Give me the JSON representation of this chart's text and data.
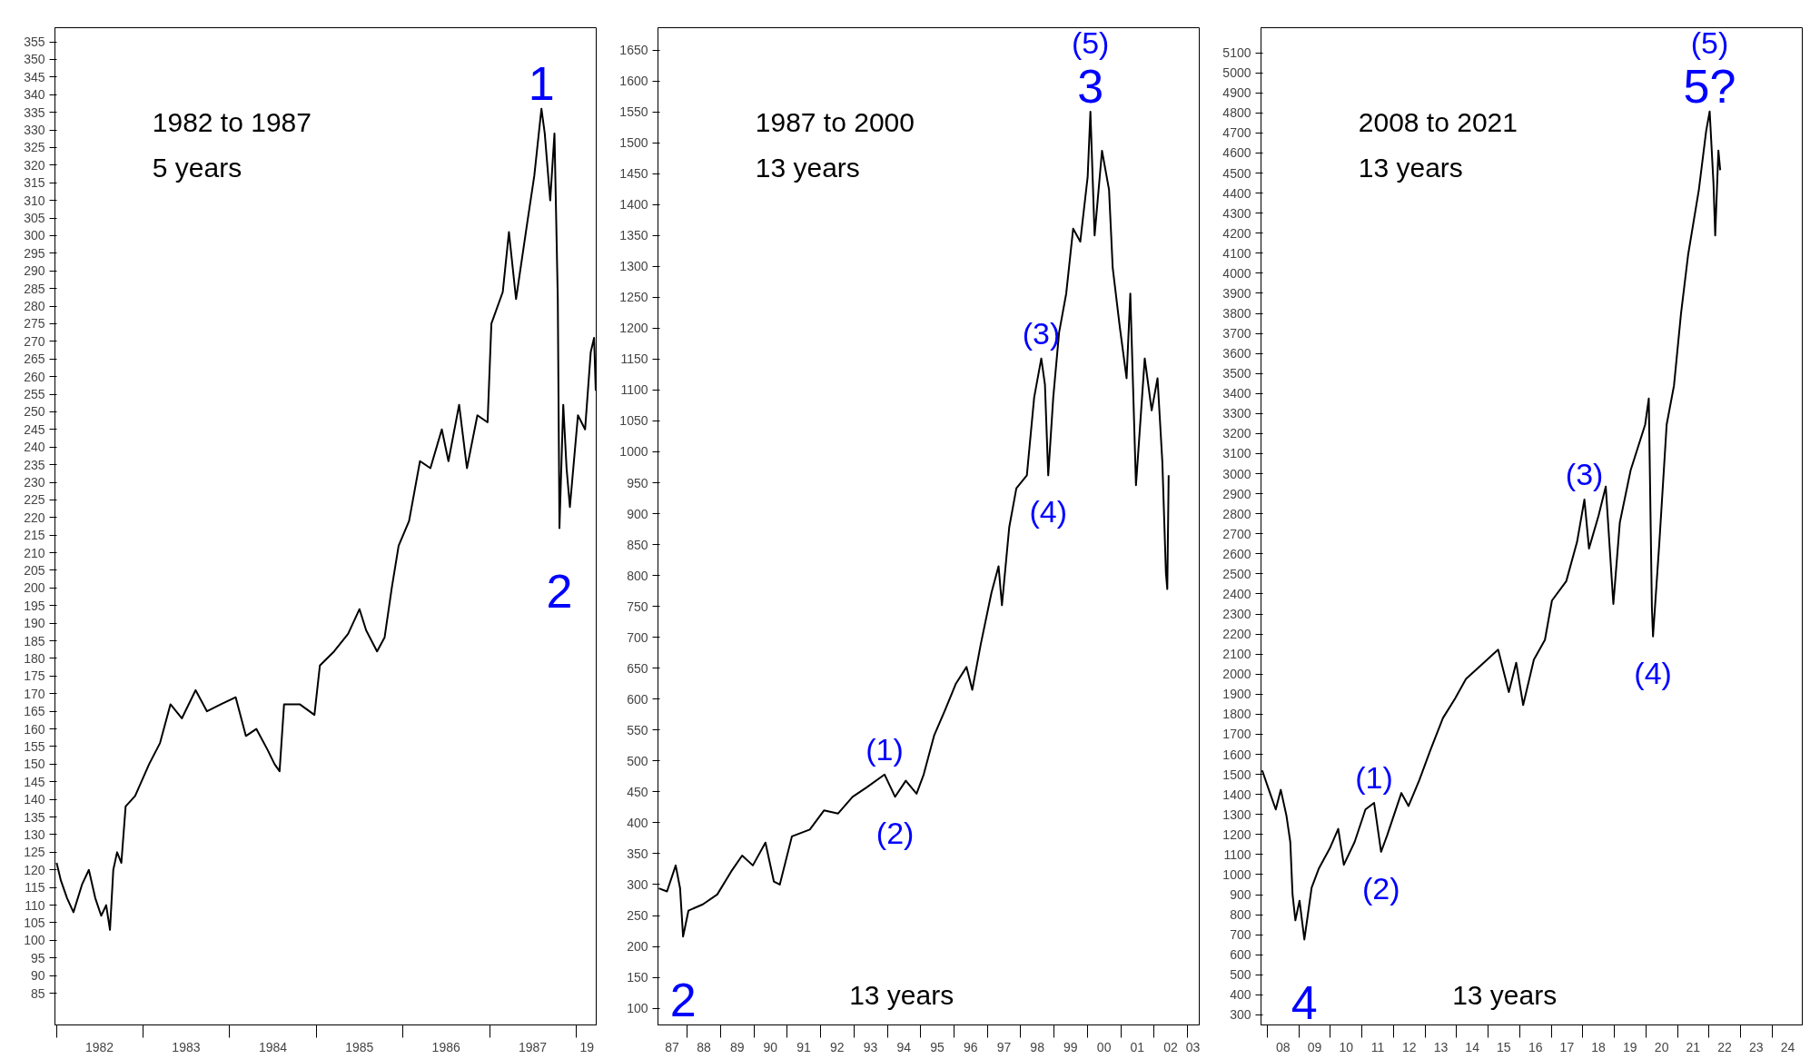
{
  "chart_data": [
    {
      "type": "line",
      "title": "1982 to 1987",
      "subtitle": "5 years",
      "xlim": [
        "1981-12-25",
        "1988-03-25"
      ],
      "ylim": [
        76,
        359
      ],
      "xticks": [
        {
          "value": "1982-07-01",
          "label": "1982"
        },
        {
          "value": "1983-07-01",
          "label": "1983"
        },
        {
          "value": "1984-07-01",
          "label": "1984"
        },
        {
          "value": "1985-07-01",
          "label": "1985"
        },
        {
          "value": "1986-07-01",
          "label": "1986"
        },
        {
          "value": "1987-07-01",
          "label": "1987"
        },
        {
          "value": "1988-02-15",
          "label": "19"
        }
      ],
      "yticks": [
        85,
        90,
        95,
        100,
        105,
        110,
        115,
        120,
        125,
        130,
        135,
        140,
        145,
        150,
        155,
        160,
        165,
        170,
        175,
        180,
        185,
        190,
        195,
        200,
        205,
        210,
        215,
        220,
        225,
        230,
        235,
        240,
        245,
        250,
        255,
        260,
        265,
        270,
        275,
        280,
        285,
        290,
        295,
        300,
        305,
        310,
        315,
        320,
        325,
        330,
        335,
        340,
        345,
        350,
        355
      ],
      "series": [
        {
          "color": "#000000",
          "x": [
            "1982-01-01",
            "1982-01-19",
            "1982-02-14",
            "1982-03-13",
            "1982-04-19",
            "1982-05-17",
            "1982-06-13",
            "1982-07-08",
            "1982-07-29",
            "1982-08-14",
            "1982-08-28",
            "1982-09-13",
            "1982-10-01",
            "1982-10-19",
            "1982-11-28",
            "1983-01-26",
            "1983-03-13",
            "1983-04-26",
            "1983-06-13",
            "1983-08-10",
            "1983-09-27",
            "1983-11-25",
            "1984-01-26",
            "1984-03-09",
            "1984-04-22",
            "1984-06-09",
            "1984-07-08",
            "1984-07-29",
            "1984-08-17",
            "1984-10-22",
            "1984-12-23",
            "1985-01-15",
            "1985-03-16",
            "1985-05-14",
            "1985-07-01",
            "1985-07-29",
            "1985-09-13",
            "1985-10-15",
            "1985-11-14",
            "1985-12-13",
            "1986-01-26",
            "1986-03-13",
            "1986-04-26",
            "1986-06-13",
            "1986-07-11",
            "1986-08-25",
            "1986-09-27",
            "1986-11-10",
            "1986-12-23",
            "1987-01-08",
            "1987-02-25",
            "1987-03-23",
            "1987-04-22",
            "1987-06-09",
            "1987-07-08",
            "1987-08-07",
            "1987-08-21",
            "1987-09-13",
            "1987-10-01",
            "1987-10-15",
            "1987-10-22",
            "1987-11-07",
            "1987-11-21",
            "1987-12-05",
            "1988-01-08",
            "1988-02-07",
            "1988-03-02",
            "1988-03-16",
            "1988-03-23"
          ],
          "values": [
            122,
            117,
            112,
            108,
            116,
            120,
            112,
            107,
            110,
            103,
            120,
            125,
            122,
            138,
            141,
            150,
            156,
            167,
            163,
            171,
            165,
            167,
            169,
            158,
            160,
            154,
            150,
            148,
            167,
            167,
            164,
            178,
            182,
            187,
            194,
            188,
            182,
            186,
            200,
            212,
            219,
            236,
            234,
            245,
            236,
            252,
            234,
            249,
            247,
            275,
            284,
            301,
            282,
            304,
            317,
            336,
            329,
            310,
            329,
            282,
            217,
            252,
            234,
            223,
            249,
            245,
            267,
            271,
            256
          ]
        }
      ],
      "annotations": [
        {
          "text": "1",
          "x": "1987-08-07",
          "y": 336
        },
        {
          "text": "2",
          "x": "1987-10-22",
          "y": 217
        }
      ]
    },
    {
      "type": "line",
      "title": "1987 to 2000",
      "subtitle": "13 years",
      "xlim": [
        "1987-02-15",
        "2003-05-10"
      ],
      "ylim": [
        73,
        1686
      ],
      "xticks": [
        {
          "value": "1987-07-20",
          "label": "87"
        },
        {
          "value": "1988-07-01",
          "label": "88"
        },
        {
          "value": "1989-07-01",
          "label": "89"
        },
        {
          "value": "1990-07-01",
          "label": "90"
        },
        {
          "value": "1991-07-01",
          "label": "91"
        },
        {
          "value": "1992-07-01",
          "label": "92"
        },
        {
          "value": "1993-07-01",
          "label": "93"
        },
        {
          "value": "1994-07-01",
          "label": "94"
        },
        {
          "value": "1995-07-01",
          "label": "95"
        },
        {
          "value": "1996-07-01",
          "label": "96"
        },
        {
          "value": "1997-07-01",
          "label": "97"
        },
        {
          "value": "1998-07-01",
          "label": "98"
        },
        {
          "value": "1999-07-01",
          "label": "99"
        },
        {
          "value": "2000-07-01",
          "label": "00"
        },
        {
          "value": "2001-07-01",
          "label": "01"
        },
        {
          "value": "2002-07-01",
          "label": "02"
        },
        {
          "value": "2003-03-01",
          "label": "03"
        }
      ],
      "yticks": [
        100,
        150,
        200,
        250,
        300,
        350,
        400,
        450,
        500,
        550,
        600,
        650,
        700,
        750,
        800,
        850,
        900,
        950,
        1000,
        1050,
        1100,
        1150,
        1200,
        1250,
        1300,
        1350,
        1400,
        1450,
        1500,
        1550,
        1600,
        1650
      ],
      "series": [
        {
          "color": "#000000",
          "x": [
            "1987-02-25",
            "1987-05-25",
            "1987-08-28",
            "1987-10-15",
            "1987-11-17",
            "1988-01-15",
            "1988-06-20",
            "1988-11-25",
            "1989-04-26",
            "1989-08-25",
            "1989-12-20",
            "1990-05-07",
            "1990-08-07",
            "1990-10-11",
            "1991-02-21",
            "1991-09-05",
            "1992-02-07",
            "1992-07-11",
            "1992-12-16",
            "1993-05-17",
            "1993-12-02",
            "1994-03-27",
            "1994-07-22",
            "1994-11-17",
            "1995-02-03",
            "1995-05-28",
            "1995-09-27",
            "1996-01-22",
            "1996-05-17",
            "1996-07-19",
            "1996-10-19",
            "1997-02-14",
            "1997-05-03",
            "1997-06-09",
            "1997-08-28",
            "1997-11-14",
            "1998-03-09",
            "1998-05-28",
            "1998-08-14",
            "1998-09-23",
            "1998-10-29",
            "1998-12-23",
            "1999-02-25",
            "1999-05-14",
            "1999-07-29",
            "1999-10-15",
            "2000-01-04",
            "2000-02-03",
            "2000-03-20",
            "2000-06-09",
            "2000-08-25",
            "2000-10-04",
            "2000-12-20",
            "2001-03-05",
            "2001-04-15",
            "2001-06-16",
            "2001-09-20",
            "2001-12-05",
            "2002-02-07",
            "2002-04-01",
            "2002-05-10",
            "2002-05-25",
            "2002-06-09"
          ],
          "values": [
            294,
            289,
            331,
            294,
            216,
            258,
            268,
            284,
            321,
            347,
            331,
            368,
            305,
            300,
            378,
            389,
            420,
            415,
            442,
            457,
            478,
            442,
            468,
            447,
            478,
            541,
            583,
            625,
            652,
            615,
            688,
            772,
            815,
            752,
            878,
            941,
            962,
            1088,
            1151,
            1109,
            962,
            1088,
            1193,
            1256,
            1361,
            1340,
            1445,
            1550,
            1350,
            1487,
            1424,
            1298,
            1203,
            1119,
            1256,
            946,
            1151,
            1067,
            1119,
            983,
            804,
            778,
            962
          ]
        }
      ],
      "annotations": [
        {
          "text": "2",
          "x": "1987-11-17",
          "y": 216
        },
        {
          "text": "3",
          "x": "2000-02-03",
          "y": 1550
        },
        {
          "text": "(5)",
          "x": "2000-02-03",
          "y": 1550
        },
        {
          "text": "(3)",
          "x": "1998-08-14",
          "y": 1151
        },
        {
          "text": "(4)",
          "x": "1998-10-29",
          "y": 962
        },
        {
          "text": "(1)",
          "x": "1993-12-02",
          "y": 478
        },
        {
          "text": "(2)",
          "x": "1994-03-27",
          "y": 442
        },
        "13 years"
      ]
    },
    {
      "type": "line",
      "title": "2008 to 2021",
      "subtitle": "13 years",
      "xlim": [
        "2007-10-20",
        "2024-12-15"
      ],
      "ylim": [
        250,
        5225
      ],
      "xticks": [
        {
          "value": "2008-07-01",
          "label": "08"
        },
        {
          "value": "2009-07-01",
          "label": "09"
        },
        {
          "value": "2010-07-01",
          "label": "10"
        },
        {
          "value": "2011-07-01",
          "label": "11"
        },
        {
          "value": "2012-07-01",
          "label": "12"
        },
        {
          "value": "2013-07-01",
          "label": "13"
        },
        {
          "value": "2014-07-01",
          "label": "14"
        },
        {
          "value": "2015-07-01",
          "label": "15"
        },
        {
          "value": "2016-07-01",
          "label": "16"
        },
        {
          "value": "2017-07-01",
          "label": "17"
        },
        {
          "value": "2018-07-01",
          "label": "18"
        },
        {
          "value": "2019-07-01",
          "label": "19"
        },
        {
          "value": "2020-07-01",
          "label": "20"
        },
        {
          "value": "2021-07-01",
          "label": "21"
        },
        {
          "value": "2022-07-01",
          "label": "22"
        },
        {
          "value": "2023-07-01",
          "label": "23"
        },
        {
          "value": "2024-07-01",
          "label": "24"
        }
      ],
      "yticks": [
        300,
        400,
        500,
        600,
        700,
        800,
        900,
        1000,
        1100,
        1200,
        1300,
        1400,
        1500,
        1600,
        1700,
        1800,
        1900,
        2000,
        2100,
        2200,
        2300,
        2400,
        2500,
        2600,
        2700,
        2800,
        2900,
        3000,
        3100,
        3200,
        3300,
        3400,
        3500,
        3600,
        3700,
        3800,
        3900,
        4000,
        4100,
        4200,
        4300,
        4400,
        4500,
        4600,
        4700,
        4800,
        4900,
        5000,
        5100
      ],
      "series": [
        {
          "color": "#000000",
          "x": [
            "2007-11-03",
            "2008-01-19",
            "2008-04-08",
            "2008-06-05",
            "2008-08-10",
            "2008-09-23",
            "2008-10-19",
            "2008-11-21",
            "2009-01-08",
            "2009-03-05",
            "2009-05-28",
            "2009-08-21",
            "2009-12-23",
            "2010-04-01",
            "2010-06-05",
            "2010-10-08",
            "2011-02-10",
            "2011-05-21",
            "2011-08-10",
            "2011-10-19",
            "2012-04-01",
            "2012-06-23",
            "2012-10-26",
            "2013-02-28",
            "2013-07-26",
            "2013-12-13",
            "2014-04-19",
            "2014-10-01",
            "2015-04-26",
            "2015-08-28",
            "2015-11-21",
            "2016-02-10",
            "2016-06-13",
            "2016-10-19",
            "2017-01-08",
            "2017-06-23",
            "2017-10-26",
            "2018-01-19",
            "2018-03-13",
            "2018-07-01",
            "2018-09-23",
            "2018-12-20",
            "2019-03-05",
            "2019-07-08",
            "2019-12-23",
            "2020-02-03",
            "2020-03-10",
            "2020-03-23",
            "2020-06-05",
            "2020-08-28",
            "2020-11-21",
            "2021-02-10",
            "2021-05-03",
            "2021-09-05",
            "2021-11-28",
            "2022-01-08",
            "2022-02-21",
            "2022-03-13",
            "2022-04-19",
            "2022-05-10"
          ],
          "values": [
            1520,
            1423,
            1325,
            1423,
            1293,
            1163,
            902,
            772,
            870,
            676,
            935,
            1032,
            1130,
            1228,
            1049,
            1163,
            1325,
            1358,
            1114,
            1195,
            1407,
            1342,
            1472,
            1618,
            1781,
            1878,
            1976,
            2041,
            2122,
            1911,
            2057,
            1846,
            2073,
            2171,
            2367,
            2464,
            2660,
            2871,
            2627,
            2790,
            2936,
            2350,
            2757,
            3017,
            3245,
            3375,
            2334,
            2188,
            2660,
            3245,
            3440,
            3798,
            4091,
            4417,
            4709,
            4807,
            4449,
            4189,
            4612,
            4514
          ]
        }
      ],
      "annotations": [
        {
          "text": "4",
          "x": "2009-03-05",
          "y": 676
        },
        {
          "text": "5?",
          "x": "2022-01-08",
          "y": 4807
        },
        {
          "text": "(5)",
          "x": "2022-01-08",
          "y": 4807
        },
        {
          "text": "(3)",
          "x": "2018-01-19",
          "y": 2871
        },
        {
          "text": "(4)",
          "x": "2020-03-23",
          "y": 2188
        },
        {
          "text": "(1)",
          "x": "2011-05-21",
          "y": 1358
        },
        {
          "text": "(2)",
          "x": "2011-08-10",
          "y": 1114
        },
        "13 years"
      ]
    }
  ]
}
